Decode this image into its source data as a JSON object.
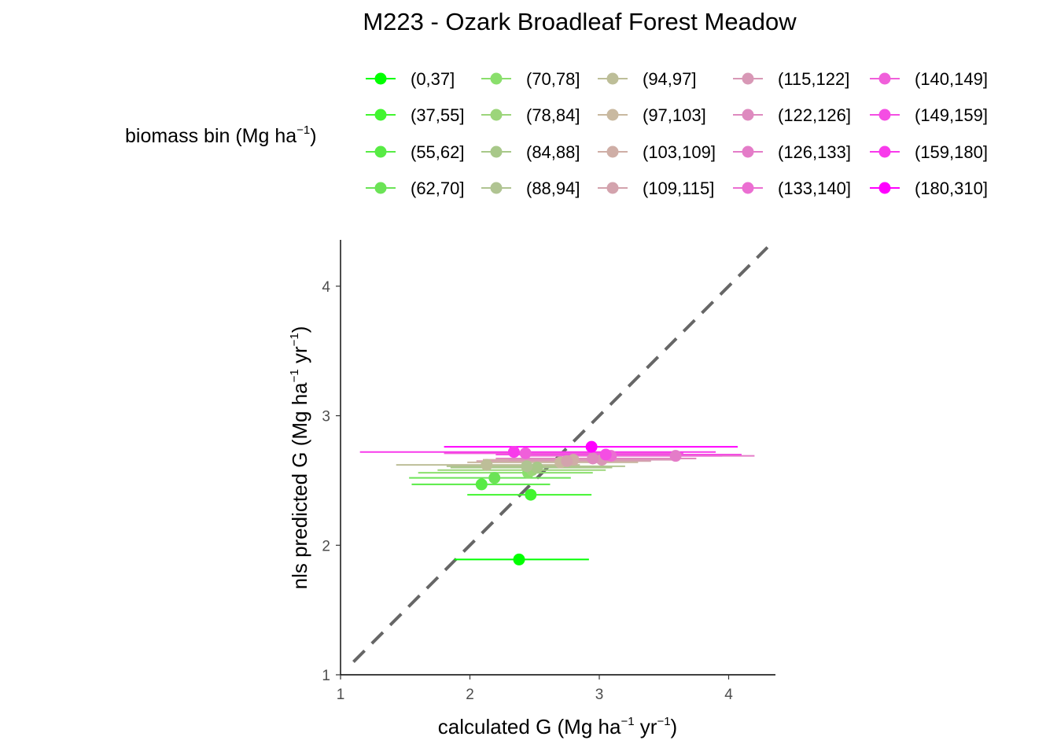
{
  "chart_data": {
    "type": "scatter",
    "title": "M223 - Ozark Broadleaf Forest Meadow",
    "xlabel": "calculated G (Mg ha⁻¹ yr⁻¹)",
    "ylabel": "nls predicted G (Mg ha⁻¹ yr⁻¹)",
    "xlabel_parts": {
      "pre": "calculated G (Mg ha",
      "sup1": "−1",
      "mid": " yr",
      "sup2": "−1",
      "post": ")"
    },
    "ylabel_parts": {
      "pre": "nls predicted G (Mg ha",
      "sup1": "−1",
      "mid": " yr",
      "sup2": "−1",
      "post": ")"
    },
    "xlim": [
      1,
      4.35
    ],
    "ylim": [
      1,
      4.4
    ],
    "xticks": [
      1,
      2,
      3,
      4
    ],
    "yticks": [
      1,
      2,
      3,
      4
    ],
    "grid": false,
    "reference_line": {
      "type": "1:1",
      "style": "dashed",
      "color": "#666666"
    },
    "legend": {
      "title_parts": {
        "pre": "biomass bin (Mg ha",
        "sup": "−1",
        "post": ")"
      },
      "placement": "top"
    },
    "series": [
      {
        "name": "(0,37]",
        "color": "#00FF00",
        "x": 2.38,
        "y": 1.89,
        "xerr": [
          1.88,
          2.92
        ]
      },
      {
        "name": "(37,55]",
        "color": "#41F52F",
        "x": 2.47,
        "y": 2.39,
        "xerr": [
          1.98,
          2.94
        ]
      },
      {
        "name": "(55,62]",
        "color": "#57EB44",
        "x": 2.09,
        "y": 2.47,
        "xerr": [
          1.55,
          2.62
        ]
      },
      {
        "name": "(62,70]",
        "color": "#6BE356",
        "x": 2.19,
        "y": 2.52,
        "xerr": [
          1.53,
          2.78
        ]
      },
      {
        "name": "(70,78]",
        "color": "#8ADF6C",
        "x": 2.45,
        "y": 2.56,
        "xerr": [
          1.6,
          2.95
        ]
      },
      {
        "name": "(78,84]",
        "color": "#9CD57A",
        "x": 2.48,
        "y": 2.58,
        "xerr": [
          1.75,
          3.05
        ]
      },
      {
        "name": "(84,88]",
        "color": "#A8C889",
        "x": 2.52,
        "y": 2.6,
        "xerr": [
          1.85,
          3.1
        ]
      },
      {
        "name": "(88,94]",
        "color": "#B0C492",
        "x": 2.44,
        "y": 2.61,
        "xerr": [
          1.82,
          3.2
        ]
      },
      {
        "name": "(94,97]",
        "color": "#BDBE98",
        "x": 2.13,
        "y": 2.62,
        "xerr": [
          1.43,
          2.85
        ]
      },
      {
        "name": "(97,103]",
        "color": "#C9B9A0",
        "x": 2.7,
        "y": 2.64,
        "xerr": [
          1.98,
          3.3
        ]
      },
      {
        "name": "(103,109]",
        "color": "#CFAEA6",
        "x": 2.8,
        "y": 2.66,
        "xerr": [
          2.1,
          3.35
        ]
      },
      {
        "name": "(109,115]",
        "color": "#D3A3AD",
        "x": 2.75,
        "y": 2.65,
        "xerr": [
          2.05,
          3.4
        ]
      },
      {
        "name": "(115,122]",
        "color": "#D898B6",
        "x": 3.02,
        "y": 2.66,
        "xerr": [
          2.3,
          3.6
        ]
      },
      {
        "name": "(122,126]",
        "color": "#DE8ABF",
        "x": 2.95,
        "y": 2.67,
        "xerr": [
          2.2,
          3.75
        ]
      },
      {
        "name": "(126,133]",
        "color": "#E47CC8",
        "x": 3.59,
        "y": 2.69,
        "xerr": [
          2.95,
          4.2
        ]
      },
      {
        "name": "(133,140]",
        "color": "#EB6FD2",
        "x": 3.09,
        "y": 2.69,
        "xerr": [
          2.4,
          3.95
        ]
      },
      {
        "name": "(140,149]",
        "color": "#F05FDA",
        "x": 2.43,
        "y": 2.71,
        "xerr": [
          1.8,
          3.65
        ]
      },
      {
        "name": "(149,159]",
        "color": "#F44EE3",
        "x": 3.05,
        "y": 2.7,
        "xerr": [
          2.2,
          4.1
        ]
      },
      {
        "name": "(159,180]",
        "color": "#F83AEB",
        "x": 2.34,
        "y": 2.72,
        "xerr": [
          1.15,
          3.9
        ]
      },
      {
        "name": "(180,310]",
        "color": "#FF00FF",
        "x": 2.94,
        "y": 2.76,
        "xerr": [
          1.8,
          4.07
        ]
      }
    ]
  }
}
